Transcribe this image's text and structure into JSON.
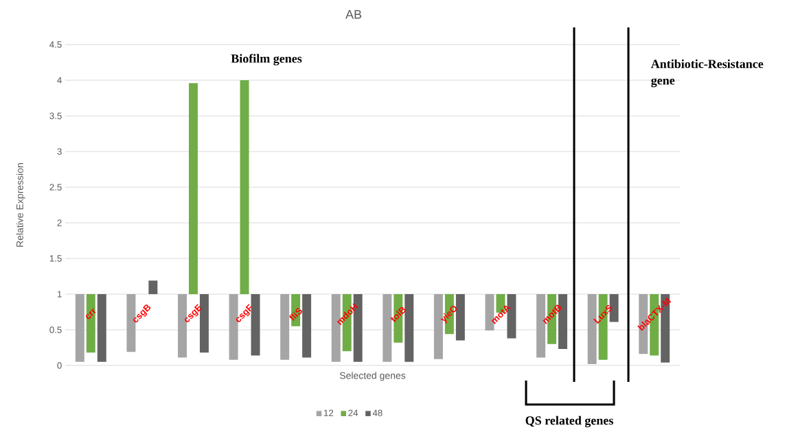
{
  "chart_data": {
    "type": "bar",
    "title": "AB",
    "xlabel": "Selected genes",
    "ylabel": "Relative Expression",
    "categories": [
      "crr",
      "csgB",
      "csgE",
      "csgF",
      "fliS",
      "mdoH",
      "tolB",
      "yieO",
      "motA",
      "motB",
      "LuxS",
      "blaCTX-M"
    ],
    "series": [
      {
        "name": "12",
        "color": "#a5a5a5",
        "base": [
          1,
          1,
          1,
          1,
          1,
          1,
          1,
          1,
          1,
          1,
          1,
          1
        ],
        "values": [
          -0.95,
          -0.81,
          -0.89,
          -0.92,
          -0.92,
          -0.95,
          -0.95,
          -0.91,
          -0.51,
          -0.89,
          -0.98,
          -0.84
        ]
      },
      {
        "name": "24",
        "color": "#70ad47",
        "base": [
          1,
          null,
          1,
          1,
          1,
          1,
          1,
          1,
          1,
          1,
          1,
          1
        ],
        "values": [
          -0.82,
          null,
          2.96,
          3.0,
          -0.45,
          -0.8,
          -0.68,
          -0.56,
          -0.26,
          -0.7,
          -0.92,
          -0.86
        ]
      },
      {
        "name": "48",
        "color": "#636363",
        "base": [
          1,
          1,
          1,
          1,
          1,
          1,
          1,
          1,
          1,
          1,
          1,
          1
        ],
        "values": [
          -0.95,
          0.19,
          -0.82,
          -0.86,
          -0.89,
          -0.95,
          -0.95,
          -0.65,
          -0.62,
          -0.77,
          -0.39,
          -0.96
        ]
      }
    ],
    "ylim": [
      0,
      4.5
    ],
    "yticks": [
      0,
      0.5,
      1,
      1.5,
      2,
      2.5,
      3,
      3.5,
      4,
      4.5
    ],
    "grid": "y",
    "legend": "bottom",
    "annotations": [
      "Biofilm genes",
      "Antibiotic-Resistance gene",
      "QS related genes"
    ]
  }
}
